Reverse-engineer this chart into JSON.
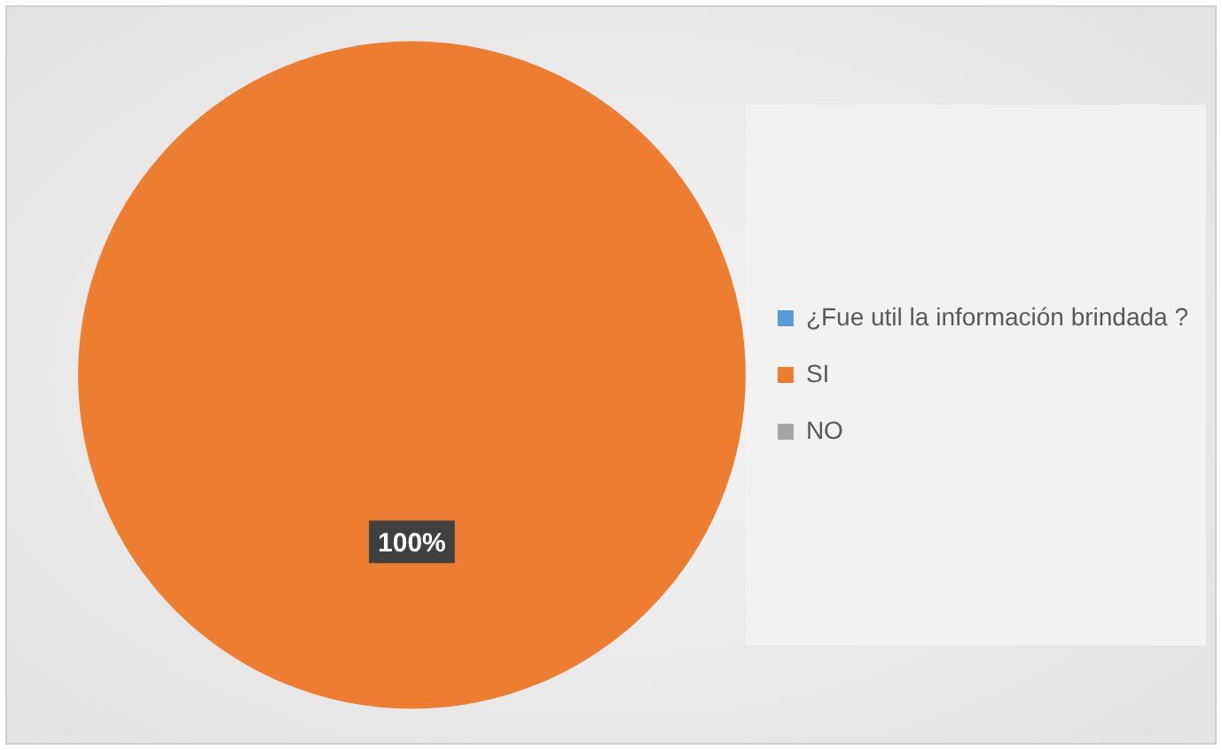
{
  "chart_data": {
    "type": "pie",
    "categories": [
      "¿Fue util la información brindada ?",
      "SI",
      "NO"
    ],
    "values": [
      0,
      100,
      0
    ],
    "colors": [
      "#5b9bd5",
      "#ed7d31",
      "#a5a5a5"
    ],
    "value_labels": [
      null,
      "100%",
      null
    ],
    "legend": "right"
  }
}
